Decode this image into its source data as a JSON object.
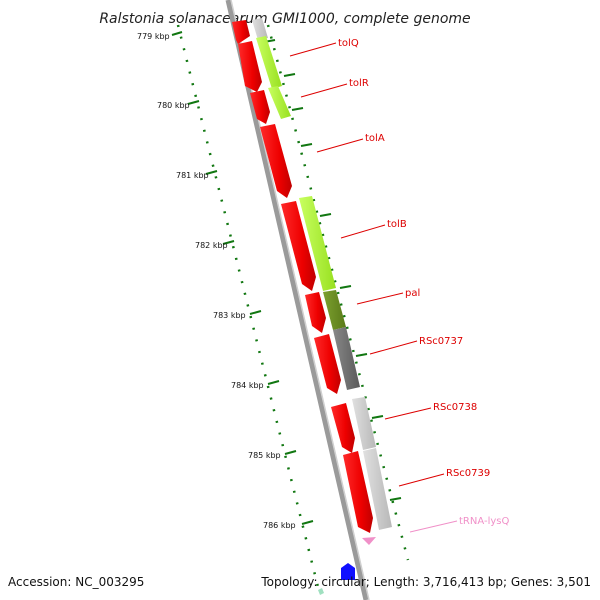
{
  "title": "Ralstonia solanacearum GMI1000, complete genome",
  "footer": {
    "accession": "Accession: NC_003295",
    "topology": "Topology: circular; Length: 3,716,413 bp; Genes: 3,501"
  },
  "scale_labels": [
    "779 kbp",
    "780 kbp",
    "781 kbp",
    "782 kbp",
    "783 kbp",
    "784 kbp",
    "785 kbp",
    "786 kbp"
  ],
  "gene_labels": [
    {
      "id": "tolQ",
      "text": "tolQ",
      "color": "#dd0000"
    },
    {
      "id": "tolR",
      "text": "tolR",
      "color": "#dd0000"
    },
    {
      "id": "tolA",
      "text": "tolA",
      "color": "#dd0000"
    },
    {
      "id": "tolB",
      "text": "tolB",
      "color": "#dd0000"
    },
    {
      "id": "pal",
      "text": "pal",
      "color": "#dd0000"
    },
    {
      "id": "RSc0737",
      "text": "RSc0737",
      "color": "#dd0000"
    },
    {
      "id": "RSc0738",
      "text": "RSc0738",
      "color": "#dd0000"
    },
    {
      "id": "RSc0739",
      "text": "RSc0739",
      "color": "#dd0000"
    },
    {
      "id": "tRNA-lysQ",
      "text": "tRNA-lysQ",
      "color": "#f090c8"
    }
  ],
  "colors": {
    "cds": "#ff0000",
    "cog_lime": "#a8f030",
    "cog_olive": "#6b8e23",
    "cog_dark": "#707070",
    "cog_light": "#c8c8c8",
    "trna": "#f090c8",
    "backbone": "#888888",
    "ticks": "#117711",
    "marker": "#1010ff"
  }
}
